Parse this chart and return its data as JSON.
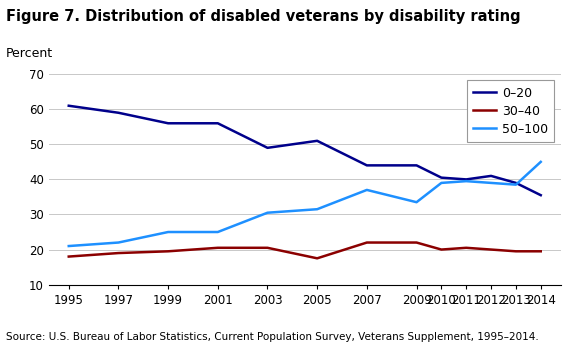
{
  "title": "Figure 7. Distribution of disabled veterans by disability rating",
  "ylabel": "Percent",
  "source": "Source: U.S. Bureau of Labor Statistics, Current Population Survey, Veterans Supplement, 1995–2014.",
  "years": [
    1995,
    1997,
    1999,
    2001,
    2003,
    2005,
    2007,
    2009,
    2010,
    2011,
    2012,
    2013,
    2014
  ],
  "series": [
    {
      "label": "0–20",
      "color": "#00008B",
      "linewidth": 1.8,
      "values": [
        61,
        59,
        56,
        56,
        49,
        51,
        44,
        44,
        40.5,
        40,
        41,
        39,
        35.5
      ]
    },
    {
      "label": "30–40",
      "color": "#8B0000",
      "linewidth": 1.8,
      "values": [
        18,
        19,
        19.5,
        20.5,
        20.5,
        17.5,
        22,
        22,
        20,
        20.5,
        20,
        19.5,
        19.5
      ]
    },
    {
      "label": "50–100",
      "color": "#1E90FF",
      "linewidth": 1.8,
      "values": [
        21,
        22,
        25,
        25,
        30.5,
        31.5,
        37,
        33.5,
        39,
        39.5,
        39,
        38.5,
        45
      ]
    }
  ],
  "ylim": [
    10,
    70
  ],
  "yticks": [
    10,
    20,
    30,
    40,
    50,
    60,
    70
  ],
  "xticks": [
    1995,
    1997,
    1999,
    2001,
    2003,
    2005,
    2007,
    2009,
    2010,
    2011,
    2012,
    2013,
    2014
  ],
  "background_color": "#ffffff",
  "grid_color": "#c8c8c8",
  "title_fontsize": 10.5,
  "ylabel_fontsize": 9,
  "tick_fontsize": 8.5,
  "source_fontsize": 7.5,
  "legend_fontsize": 9
}
